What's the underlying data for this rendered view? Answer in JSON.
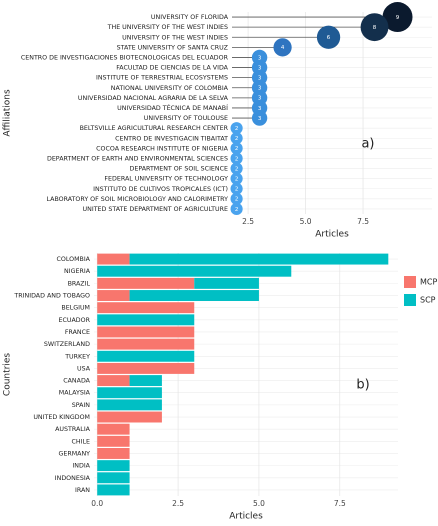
{
  "chart_data": [
    {
      "type": "lollipop",
      "x_label": "Articles",
      "y_label": "Affiliations",
      "annotation": "a)",
      "categories": [
        "UNIVERSITY OF FLORIDA",
        "THE UNIVERSITY OF THE WEST INDIES",
        "UNIVERSITY OF THE WEST INDIES",
        "STATE UNIVERSITY OF SANTA CRUZ",
        "CENTRO DE INVESTIGACIONES BIOTECNOLOGICAS DEL ECUADOR",
        "FACULTAD DE CIENCIAS DE LA VIDA",
        "INSTITUTE OF TERRESTRIAL ECOSYSTEMS",
        "NATIONAL UNIVERSITY OF COLOMBIA",
        "UNIVERSIDAD NACIONAL AGRARIA DE LA SELVA",
        "UNIVERSIDAD TÉCNICA DE MANABÍ",
        "UNIVERSITY OF TOULOUSE",
        "BELTSVILLE AGRICULTURAL RESEARCH CENTER",
        "CENTRO DE INVESTIGACIN TIBAITAT",
        "COCOA RESEARCH INSTITUTE OF NIGERIA",
        "DEPARTMENT OF EARTH AND ENVIRONMENTAL SCIENCES",
        "DEPARTMENT OF SOIL SCIENCE",
        "FEDERAL UNIVERSITY OF TECHNOLOGY",
        "INSTITUTO DE CULTIVOS TROPICALES (ICT)",
        "LABORATORY OF SOIL MICROBIOLOGY AND CALORIMETRY",
        "UNITED STATE DEPARTMENT OF AGRICULTURE"
      ],
      "values": [
        9,
        8,
        6,
        4,
        3,
        3,
        3,
        3,
        3,
        3,
        3,
        2,
        2,
        2,
        2,
        2,
        2,
        2,
        2,
        2
      ],
      "colors": [
        "#0b1a2e",
        "#132f4c",
        "#1f5a94",
        "#2e74c0",
        "#3a8fdc",
        "#3a8fdc",
        "#3a8fdc",
        "#3a8fdc",
        "#3a8fdc",
        "#3a8fdc",
        "#3a8fdc",
        "#4aa3ee",
        "#4aa3ee",
        "#4aa3ee",
        "#4aa3ee",
        "#4aa3ee",
        "#4aa3ee",
        "#4aa3ee",
        "#4aa3ee",
        "#4aa3ee"
      ],
      "line_color": "#555555",
      "xlim": [
        1.8,
        10.5
      ],
      "xticks": [
        2.5,
        {
          "value": 5,
          "label": "5.0"
        },
        7.5
      ],
      "grid": true
    },
    {
      "type": "bar",
      "orientation": "horizontal",
      "stacked": true,
      "x_label": "Articles",
      "y_label": "Countries",
      "annotation": "b)",
      "legend": "right",
      "categories": [
        "COLOMBIA",
        "NIGERIA",
        "BRAZIL",
        "TRINIDAD AND TOBAGO",
        "BELGIUM",
        "ECUADOR",
        "FRANCE",
        "SWITZERLAND",
        "TURKEY",
        "USA",
        "CANADA",
        "MALAYSIA",
        "SPAIN",
        "UNITED KINGDOM",
        "AUSTRALIA",
        "CHILE",
        "GERMANY",
        "INDIA",
        "INDONESIA",
        "IRAN"
      ],
      "series": [
        {
          "name": "MCP",
          "color": "#f8766d",
          "values": [
            1,
            0,
            3,
            1,
            3,
            0,
            3,
            3,
            0,
            3,
            1,
            0,
            0,
            2,
            1,
            1,
            1,
            0,
            0,
            0
          ]
        },
        {
          "name": "SCP",
          "color": "#00bfc4",
          "values": [
            8,
            6,
            2,
            4,
            0,
            3,
            0,
            0,
            3,
            0,
            1,
            2,
            2,
            0,
            0,
            0,
            0,
            1,
            1,
            1
          ]
        }
      ],
      "xlim": [
        -0.1,
        9.3
      ],
      "xticks": [
        {
          "value": 0,
          "label": "0.0"
        },
        2.5,
        {
          "value": 5,
          "label": "5.0"
        },
        7.5
      ],
      "grid": true
    }
  ]
}
